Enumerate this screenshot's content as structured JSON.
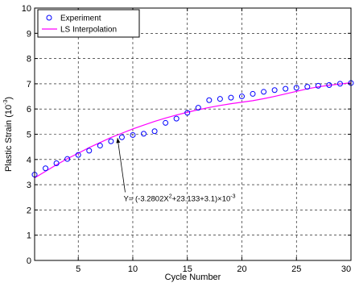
{
  "chart_data": {
    "type": "scatter",
    "title": "",
    "xlabel": "Cycle Number",
    "ylabel_main": "Plastic Strain (10",
    "ylabel_exp": "-3",
    "ylabel_tail": ")",
    "xlim": [
      1,
      30
    ],
    "ylim": [
      0,
      10
    ],
    "xticks": [
      5,
      10,
      15,
      20,
      25,
      30
    ],
    "xtick_labels": [
      "5",
      "10",
      "15",
      "20",
      "25",
      "30"
    ],
    "yticks": [
      0,
      1,
      2,
      3,
      4,
      5,
      6,
      7,
      8,
      9,
      10
    ],
    "ytick_labels": [
      "0",
      "1",
      "2",
      "3",
      "4",
      "5",
      "6",
      "7",
      "8",
      "9",
      "10"
    ],
    "grid": true,
    "grid_style": "dashed",
    "legend_position": "top-left",
    "series": [
      {
        "name": "Experiment",
        "kind": "markers",
        "marker": "circle",
        "color": "#0000ff",
        "x": [
          1,
          2,
          3,
          4,
          5,
          6,
          7,
          8,
          9,
          10,
          11,
          12,
          13,
          14,
          15,
          16,
          17,
          18,
          19,
          20,
          21,
          22,
          23,
          24,
          25,
          26,
          27,
          28,
          29,
          30
        ],
        "y": [
          3.4,
          3.65,
          3.85,
          4.02,
          4.18,
          4.35,
          4.55,
          4.72,
          4.88,
          4.97,
          5.02,
          5.12,
          5.45,
          5.62,
          5.85,
          6.05,
          6.35,
          6.4,
          6.45,
          6.5,
          6.6,
          6.68,
          6.75,
          6.8,
          6.84,
          6.88,
          6.92,
          6.95,
          7.0,
          7.03
        ]
      },
      {
        "name": "LS Interpolation",
        "kind": "line",
        "color": "#ff00ff",
        "x": [
          1,
          2,
          3,
          4,
          5,
          6,
          7,
          8,
          9,
          10,
          11,
          12,
          13,
          14,
          15,
          16,
          17,
          18,
          19,
          20,
          21,
          22,
          23,
          24,
          25,
          26,
          27,
          28,
          29,
          30
        ],
        "y": [
          3.27,
          3.53,
          3.79,
          4.03,
          4.25,
          4.47,
          4.67,
          4.87,
          5.04,
          5.21,
          5.36,
          5.51,
          5.64,
          5.76,
          5.87,
          5.97,
          6.06,
          6.14,
          6.21,
          6.27,
          6.33,
          6.41,
          6.5,
          6.6,
          6.7,
          6.8,
          6.88,
          6.94,
          6.99,
          7.04
        ]
      }
    ],
    "annotation": {
      "prefix": "Y= (-3.2802X",
      "sup1": "2",
      "middle": "+23.133+3.1)×10",
      "sup2": "-3",
      "arrow_target": [
        8.6,
        4.85
      ],
      "text_anchor": [
        9.3,
        2.7
      ]
    }
  }
}
